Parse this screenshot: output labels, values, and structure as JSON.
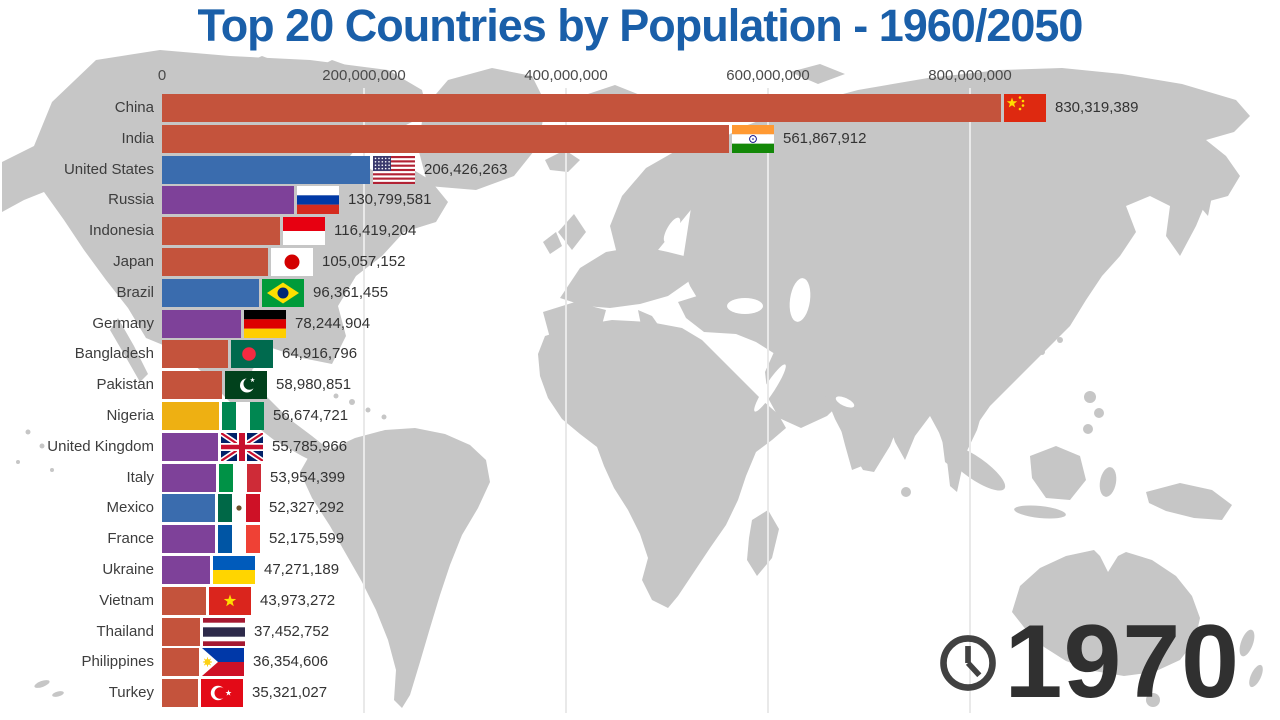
{
  "title": "Top 20 Countries by Population - 1960/2050",
  "x_axis": {
    "tick_labels": [
      "0",
      "200,000,000",
      "400,000,000",
      "600,000,000",
      "800,000,000"
    ]
  },
  "year_display": {
    "year": "1970",
    "icon": "clock-icon"
  },
  "colors": {
    "title_blue": "#1a5fa9",
    "map_gray": "#c6c6c6",
    "grid_color": "#e9e9e9",
    "year_gray": "#303030",
    "palette": {
      "asia": "#c4533c",
      "americas": "#3a6cae",
      "europe": "#7e4199",
      "africa": "#eeb012"
    }
  },
  "chart_data": {
    "type": "bar",
    "orientation": "horizontal",
    "title": "Top 20 Countries by Population - 1960/2050",
    "year_shown": "1970",
    "x_ticks": [
      0,
      200000000,
      400000000,
      600000000,
      800000000
    ],
    "x_tick_interval": 200000000,
    "categories": [
      "China",
      "India",
      "United States",
      "Russia",
      "Indonesia",
      "Japan",
      "Brazil",
      "Germany",
      "Bangladesh",
      "Pakistan",
      "Nigeria",
      "United Kingdom",
      "Italy",
      "Mexico",
      "France",
      "Ukraine",
      "Vietnam",
      "Thailand",
      "Philippines",
      "Turkey"
    ],
    "values": [
      830319389,
      561867912,
      206426263,
      130799581,
      116419204,
      105057152,
      96361455,
      78244904,
      64916796,
      58980851,
      56674721,
      55785966,
      53954399,
      52327292,
      52175599,
      47271189,
      43973272,
      37452752,
      36354606,
      35321027
    ],
    "countries": [
      {
        "name": "China",
        "value": 830319389,
        "value_label": "830,319,389",
        "region": "asia",
        "flag": "cn"
      },
      {
        "name": "India",
        "value": 561867912,
        "value_label": "561,867,912",
        "region": "asia",
        "flag": "in"
      },
      {
        "name": "United States",
        "value": 206426263,
        "value_label": "206,426,263",
        "region": "americas",
        "flag": "us"
      },
      {
        "name": "Russia",
        "value": 130799581,
        "value_label": "130,799,581",
        "region": "europe",
        "flag": "ru"
      },
      {
        "name": "Indonesia",
        "value": 116419204,
        "value_label": "116,419,204",
        "region": "asia",
        "flag": "id"
      },
      {
        "name": "Japan",
        "value": 105057152,
        "value_label": "105,057,152",
        "region": "asia",
        "flag": "jp"
      },
      {
        "name": "Brazil",
        "value": 96361455,
        "value_label": "96,361,455",
        "region": "americas",
        "flag": "br"
      },
      {
        "name": "Germany",
        "value": 78244904,
        "value_label": "78,244,904",
        "region": "europe",
        "flag": "de"
      },
      {
        "name": "Bangladesh",
        "value": 64916796,
        "value_label": "64,916,796",
        "region": "asia",
        "flag": "bd"
      },
      {
        "name": "Pakistan",
        "value": 58980851,
        "value_label": "58,980,851",
        "region": "asia",
        "flag": "pk"
      },
      {
        "name": "Nigeria",
        "value": 56674721,
        "value_label": "56,674,721",
        "region": "africa",
        "flag": "ng"
      },
      {
        "name": "United Kingdom",
        "value": 55785966,
        "value_label": "55,785,966",
        "region": "europe",
        "flag": "gb"
      },
      {
        "name": "Italy",
        "value": 53954399,
        "value_label": "53,954,399",
        "region": "europe",
        "flag": "it"
      },
      {
        "name": "Mexico",
        "value": 52327292,
        "value_label": "52,327,292",
        "region": "americas",
        "flag": "mx"
      },
      {
        "name": "France",
        "value": 52175599,
        "value_label": "52,175,599",
        "region": "europe",
        "flag": "fr"
      },
      {
        "name": "Ukraine",
        "value": 47271189,
        "value_label": "47,271,189",
        "region": "europe",
        "flag": "ua"
      },
      {
        "name": "Vietnam",
        "value": 43973272,
        "value_label": "43,973,272",
        "region": "asia",
        "flag": "vn"
      },
      {
        "name": "Thailand",
        "value": 37452752,
        "value_label": "37,452,752",
        "region": "asia",
        "flag": "th"
      },
      {
        "name": "Philippines",
        "value": 36354606,
        "value_label": "36,354,606",
        "region": "asia",
        "flag": "ph"
      },
      {
        "name": "Turkey",
        "value": 35321027,
        "value_label": "35,321,027",
        "region": "asia",
        "flag": "tr"
      }
    ]
  }
}
